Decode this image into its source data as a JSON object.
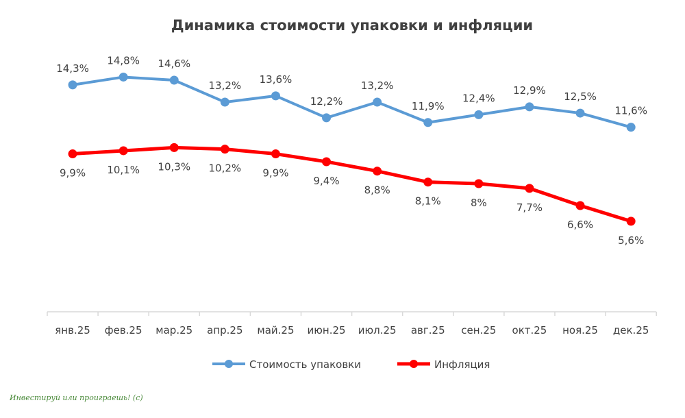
{
  "chart_data": {
    "type": "line",
    "title": "Динамика стоимости упаковки и инфляции",
    "categories": [
      "янв.25",
      "фев.25",
      "мар.25",
      "апр.25",
      "май.25",
      "июн.25",
      "июл.25",
      "авг.25",
      "сен.25",
      "окт.25",
      "ноя.25",
      "дек.25"
    ],
    "series": [
      {
        "name": "Стоимость упаковки",
        "color": "#5b9bd5",
        "values": [
          14.3,
          14.8,
          14.6,
          13.2,
          13.6,
          12.2,
          13.2,
          11.9,
          12.4,
          12.9,
          12.5,
          11.6
        ],
        "labels": [
          "14,3%",
          "14,8%",
          "14,6%",
          "13,2%",
          "13,6%",
          "12,2%",
          "13,2%",
          "11,9%",
          "12,4%",
          "12,9%",
          "12,5%",
          "11,6%"
        ],
        "label_position": "above"
      },
      {
        "name": "Инфляция",
        "color": "#ff0000",
        "values": [
          9.9,
          10.1,
          10.3,
          10.2,
          9.9,
          9.4,
          8.8,
          8.1,
          8.0,
          7.7,
          6.6,
          5.6
        ],
        "labels": [
          "9,9%",
          "10,1%",
          "10,3%",
          "10,2%",
          "9,9%",
          "9,4%",
          "8,8%",
          "8,1%",
          "8%",
          "7,7%",
          "6,6%",
          "5,6%"
        ],
        "label_position": "below"
      }
    ],
    "ylim": [
      0,
      16
    ],
    "grid": false,
    "y_axis_visible": false,
    "legend_placement": "bottom"
  },
  "watermark": "Инвестируй или проиграешь! (c)"
}
